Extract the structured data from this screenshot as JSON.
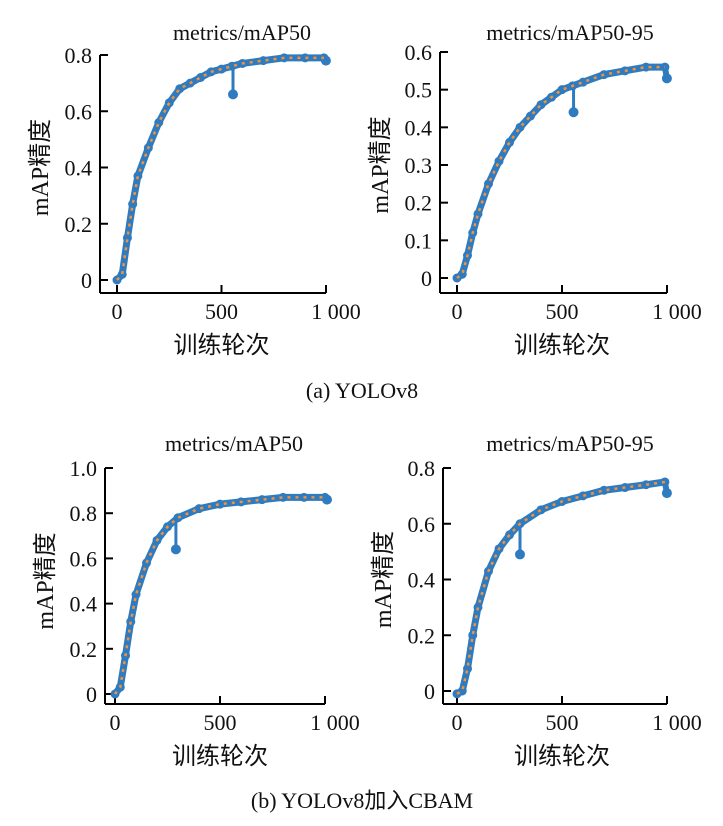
{
  "colors": {
    "series": "#2f7bbf",
    "smooth": "#f5913a",
    "axis": "#000000"
  },
  "captions": [
    "(a) YOLOv8",
    "(b) YOLOv8加入CBAM"
  ],
  "chart_data": [
    {
      "type": "line",
      "group": "(a) YOLOv8",
      "title": "metrics/mAP50",
      "xlabel": "训练轮次",
      "ylabel": "mAP精度",
      "xlim": [
        0,
        1000
      ],
      "ylim": [
        0,
        0.8
      ],
      "xticks": [
        "0",
        "500",
        "1 000"
      ],
      "xtick_values": [
        0,
        500,
        1000
      ],
      "yticks": [
        "0",
        "0.2",
        "0.4",
        "0.6",
        "0.8"
      ],
      "ytick_values": [
        0,
        0.2,
        0.4,
        0.6,
        0.8
      ],
      "x": [
        0,
        25,
        50,
        75,
        100,
        150,
        200,
        250,
        300,
        350,
        400,
        450,
        500,
        550,
        600,
        700,
        800,
        900,
        990
      ],
      "y": [
        0,
        0.02,
        0.15,
        0.27,
        0.37,
        0.47,
        0.56,
        0.63,
        0.68,
        0.7,
        0.72,
        0.74,
        0.75,
        0.76,
        0.77,
        0.78,
        0.79,
        0.79,
        0.79
      ],
      "outlier": {
        "x": 555,
        "y": 0.66
      },
      "end_value": 0.78
    },
    {
      "type": "line",
      "group": "(a) YOLOv8",
      "title": "metrics/mAP50-95",
      "xlabel": "训练轮次",
      "ylabel": "mAP精度",
      "xlim": [
        0,
        1000
      ],
      "ylim": [
        0,
        0.6
      ],
      "xticks": [
        "0",
        "500",
        "1 000"
      ],
      "xtick_values": [
        0,
        500,
        1000
      ],
      "yticks": [
        "0",
        "0.1",
        "0.2",
        "0.3",
        "0.4",
        "0.5",
        "0.6"
      ],
      "ytick_values": [
        0,
        0.1,
        0.2,
        0.3,
        0.4,
        0.5,
        0.6
      ],
      "x": [
        0,
        25,
        50,
        75,
        100,
        150,
        200,
        250,
        300,
        350,
        400,
        450,
        500,
        550,
        600,
        700,
        800,
        900,
        990
      ],
      "y": [
        0,
        0.01,
        0.06,
        0.12,
        0.17,
        0.25,
        0.31,
        0.36,
        0.4,
        0.43,
        0.46,
        0.48,
        0.5,
        0.51,
        0.52,
        0.54,
        0.55,
        0.56,
        0.56
      ],
      "outlier": {
        "x": 555,
        "y": 0.44
      },
      "end_value": 0.53
    },
    {
      "type": "line",
      "group": "(b) YOLOv8加入CBAM",
      "title": "metrics/mAP50",
      "xlabel": "训练轮次",
      "ylabel": "mAP精度",
      "xlim": [
        0,
        1000
      ],
      "ylim": [
        0,
        1.0
      ],
      "xticks": [
        "0",
        "500",
        "1 000"
      ],
      "xtick_values": [
        0,
        500,
        1000
      ],
      "yticks": [
        "0",
        "0.2",
        "0.4",
        "0.6",
        "0.8",
        "1.0"
      ],
      "ytick_values": [
        0,
        0.2,
        0.4,
        0.6,
        0.8,
        1.0
      ],
      "x": [
        0,
        25,
        50,
        75,
        100,
        150,
        200,
        250,
        300,
        400,
        500,
        600,
        700,
        800,
        900,
        1000
      ],
      "y": [
        0,
        0.03,
        0.17,
        0.32,
        0.44,
        0.58,
        0.68,
        0.74,
        0.78,
        0.82,
        0.84,
        0.85,
        0.86,
        0.87,
        0.87,
        0.87
      ],
      "outlier": {
        "x": 290,
        "y": 0.64
      },
      "end_value": 0.86
    },
    {
      "type": "line",
      "group": "(b) YOLOv8加入CBAM",
      "title": "metrics/mAP50-95",
      "xlabel": "训练轮次",
      "ylabel": "mAP精度",
      "xlim": [
        0,
        1000
      ],
      "ylim": [
        0,
        0.8
      ],
      "xticks": [
        "0",
        "500",
        "1 000"
      ],
      "xtick_values": [
        0,
        500,
        1000
      ],
      "yticks": [
        "0",
        "0.2",
        "0.4",
        "0.6",
        "0.8"
      ],
      "ytick_values": [
        0,
        0.2,
        0.4,
        0.6,
        0.8
      ],
      "x": [
        0,
        25,
        50,
        75,
        100,
        150,
        200,
        250,
        300,
        400,
        500,
        600,
        700,
        800,
        900,
        990
      ],
      "y": [
        -0.01,
        0.0,
        0.08,
        0.2,
        0.3,
        0.43,
        0.51,
        0.56,
        0.6,
        0.65,
        0.68,
        0.7,
        0.72,
        0.73,
        0.74,
        0.75
      ],
      "outlier": {
        "x": 300,
        "y": 0.49
      },
      "end_value": 0.71
    }
  ]
}
